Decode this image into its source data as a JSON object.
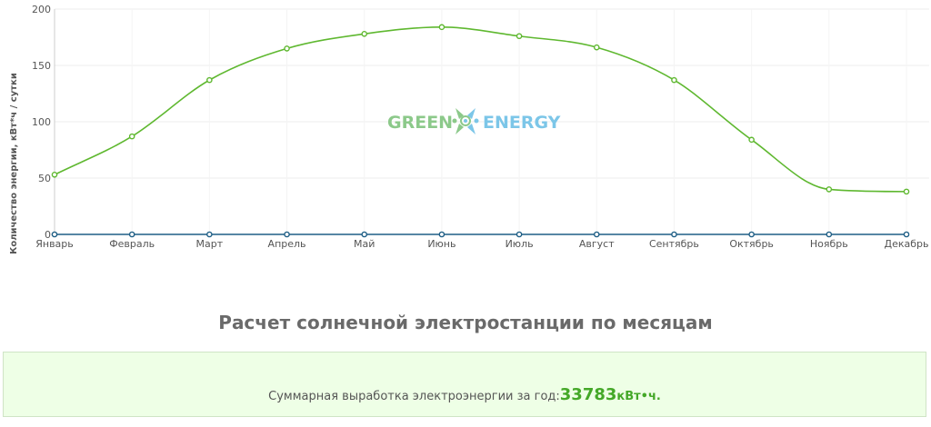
{
  "chart_data": {
    "type": "line",
    "categories": [
      "Январь",
      "Февраль",
      "Март",
      "Апрель",
      "Май",
      "Июнь",
      "Июль",
      "Август",
      "Сентябрь",
      "Октябрь",
      "Ноябрь",
      "Декабрь"
    ],
    "series": [
      {
        "values": [
          53,
          87,
          137,
          165,
          178,
          184,
          176,
          166,
          137,
          84,
          40,
          38
        ],
        "color": "#5fb830"
      },
      {
        "values": [
          0,
          0,
          0,
          0,
          0,
          0,
          0,
          0,
          0,
          0,
          0,
          0
        ],
        "color": "#1f5f86"
      }
    ],
    "ylabel": "Количество энергии, кВт*ч / сутки",
    "ylim": [
      0,
      200
    ],
    "yticks": [
      0,
      50,
      100,
      150,
      200
    ],
    "grid": true,
    "legend": "none"
  },
  "watermark": {
    "left_text": "GREEN",
    "right_text": "ENERGY",
    "left_color": "#8cc98a",
    "right_color": "#7cc6e8"
  },
  "section_title": "Расчет солнечной электростанции по месяцам",
  "summary": {
    "label": "Суммарная выработка электроэнергии за год:",
    "value": "33783",
    "unit": "кВт•ч."
  }
}
